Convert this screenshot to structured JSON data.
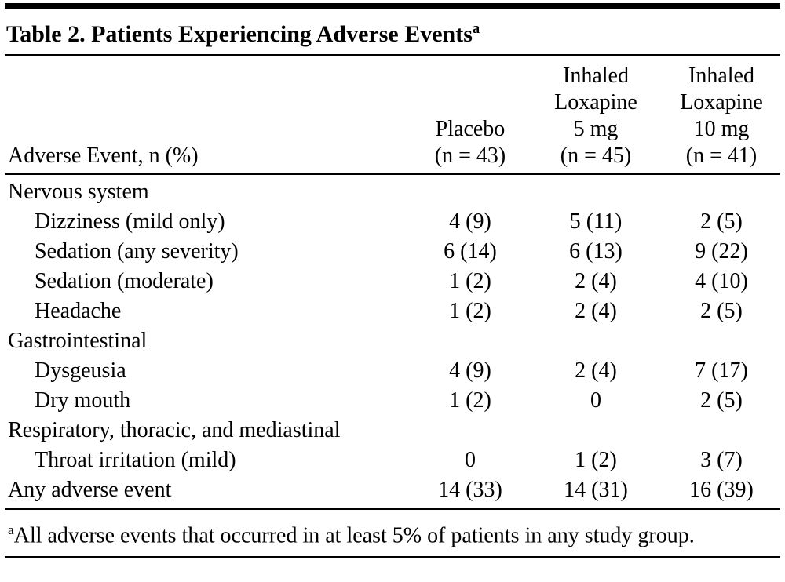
{
  "table": {
    "title": "Table 2. Patients Experiencing Adverse Events",
    "title_superscript": "a",
    "header": {
      "row_label": "Adverse Event, n (%)",
      "columns": [
        {
          "lines": [
            "Placebo",
            "(n = 43)"
          ]
        },
        {
          "lines": [
            "Inhaled",
            "Loxapine",
            "5 mg",
            "(n = 45)"
          ]
        },
        {
          "lines": [
            "Inhaled",
            "Loxapine",
            "10 mg",
            "(n = 41)"
          ]
        }
      ]
    },
    "rows": [
      {
        "type": "section",
        "label": "Nervous system"
      },
      {
        "type": "item",
        "label": "Dizziness (mild only)",
        "values": [
          "4 (9)",
          "5 (11)",
          "2 (5)"
        ]
      },
      {
        "type": "item",
        "label": "Sedation (any severity)",
        "values": [
          "6 (14)",
          "6 (13)",
          "9 (22)"
        ]
      },
      {
        "type": "item",
        "label": "Sedation (moderate)",
        "values": [
          "1 (2)",
          "2 (4)",
          "4 (10)"
        ]
      },
      {
        "type": "item",
        "label": "Headache",
        "values": [
          "1 (2)",
          "2 (4)",
          "2 (5)"
        ]
      },
      {
        "type": "section",
        "label": "Gastrointestinal"
      },
      {
        "type": "item",
        "label": "Dysgeusia",
        "values": [
          "4 (9)",
          "2 (4)",
          "7 (17)"
        ]
      },
      {
        "type": "item",
        "label": "Dry mouth",
        "values": [
          "1 (2)",
          "0",
          "2 (5)"
        ]
      },
      {
        "type": "section",
        "label": "Respiratory, thoracic, and mediastinal"
      },
      {
        "type": "item",
        "label": "Throat irritation (mild)",
        "values": [
          "0",
          "1 (2)",
          "3 (7)"
        ]
      },
      {
        "type": "total",
        "label": "Any adverse event",
        "values": [
          "14 (33)",
          "14 (31)",
          "16 (39)"
        ]
      }
    ],
    "footnote": {
      "marker": "a",
      "text": "All adverse events that occurred in at least 5% of patients in any study group."
    },
    "colors": {
      "text": "#000000",
      "rule": "#000000",
      "background": "#ffffff"
    }
  }
}
